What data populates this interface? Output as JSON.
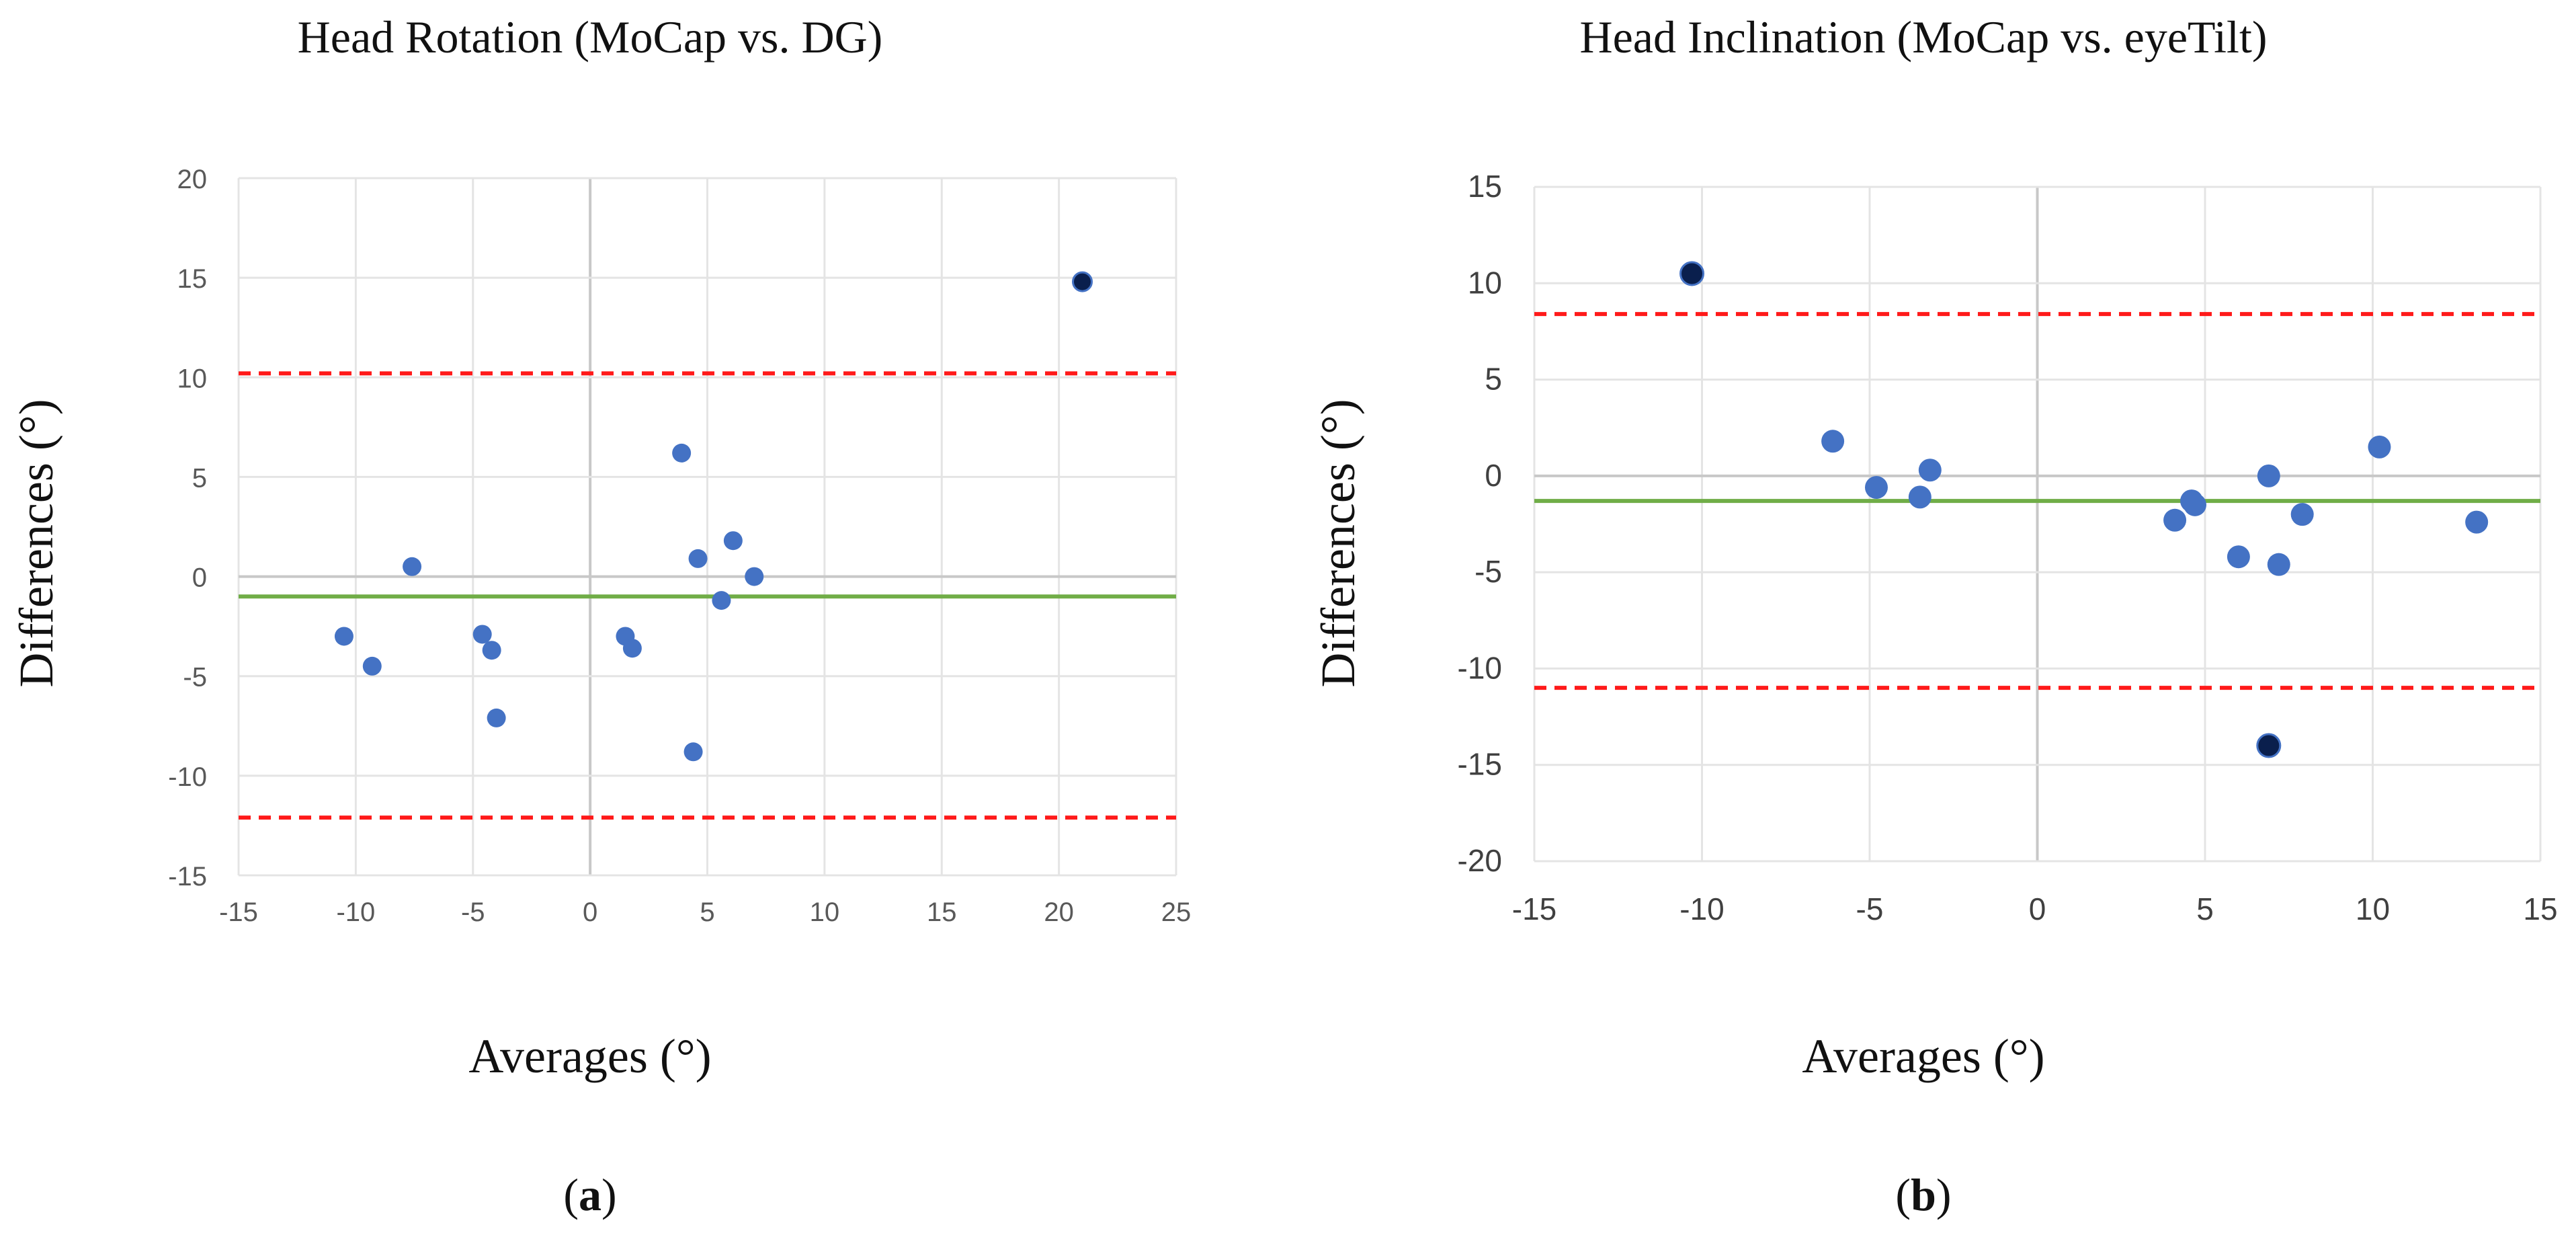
{
  "chart_data": [
    {
      "type": "scatter",
      "title": "Head Rotation (MoCap vs. DG)",
      "xlabel": "Averages (°)",
      "ylabel": "Differences (°)",
      "panel_label": "a",
      "xlim": [
        -15,
        25
      ],
      "ylim": [
        -15,
        20
      ],
      "x_ticks": [
        -15,
        -10,
        -5,
        0,
        5,
        10,
        15,
        20,
        25
      ],
      "y_ticks": [
        -15,
        -10,
        -5,
        0,
        5,
        10,
        15,
        20
      ],
      "grid": true,
      "points": [
        {
          "x": -10.5,
          "y": -3.0
        },
        {
          "x": -9.3,
          "y": -4.5
        },
        {
          "x": -7.6,
          "y": 0.5
        },
        {
          "x": -4.6,
          "y": -2.9
        },
        {
          "x": -4.2,
          "y": -3.7
        },
        {
          "x": -4.0,
          "y": -7.1
        },
        {
          "x": 1.5,
          "y": -3.0
        },
        {
          "x": 1.8,
          "y": -3.6
        },
        {
          "x": 3.9,
          "y": 6.2
        },
        {
          "x": 4.4,
          "y": -8.8
        },
        {
          "x": 4.6,
          "y": 0.9
        },
        {
          "x": 5.6,
          "y": -1.2
        },
        {
          "x": 6.1,
          "y": 1.8
        },
        {
          "x": 7.0,
          "y": 0.0
        },
        {
          "x": 21.0,
          "y": 14.8,
          "outlier": true
        }
      ],
      "mean_line": -1.0,
      "upper_loa": 10.2,
      "lower_loa": -12.1,
      "colors": {
        "points": "#4472c4",
        "outlier": "#0a1f4d",
        "mean": "#70ad47",
        "loa": "#ff1a1a"
      }
    },
    {
      "type": "scatter",
      "title": "Head Inclination (MoCap vs. eyeTilt)",
      "xlabel": "Averages (°)",
      "ylabel": "Differences (°)",
      "panel_label": "b",
      "xlim": [
        -15,
        15
      ],
      "ylim": [
        -20,
        15
      ],
      "x_ticks": [
        -15,
        -10,
        -5,
        0,
        5,
        10,
        15
      ],
      "y_ticks": [
        -20,
        -15,
        -10,
        -5,
        0,
        5,
        10,
        15
      ],
      "grid": true,
      "points": [
        {
          "x": -10.3,
          "y": 10.5,
          "outlier": true
        },
        {
          "x": -6.1,
          "y": 1.8
        },
        {
          "x": -4.8,
          "y": -0.6
        },
        {
          "x": -3.5,
          "y": -1.1
        },
        {
          "x": -3.2,
          "y": 0.3
        },
        {
          "x": 4.1,
          "y": -2.3
        },
        {
          "x": 4.6,
          "y": -1.3
        },
        {
          "x": 4.7,
          "y": -1.5
        },
        {
          "x": 6.0,
          "y": -4.2
        },
        {
          "x": 6.9,
          "y": 0.0
        },
        {
          "x": 7.2,
          "y": -4.6
        },
        {
          "x": 7.9,
          "y": -2.0
        },
        {
          "x": 10.2,
          "y": 1.5
        },
        {
          "x": 13.1,
          "y": -2.4
        },
        {
          "x": 6.9,
          "y": -14.0,
          "outlier": true
        }
      ],
      "mean_line": -1.3,
      "upper_loa": 8.4,
      "lower_loa": -11.0,
      "colors": {
        "points": "#4472c4",
        "outlier": "#0a1f4d",
        "mean": "#70ad47",
        "loa": "#ff1a1a"
      }
    }
  ]
}
